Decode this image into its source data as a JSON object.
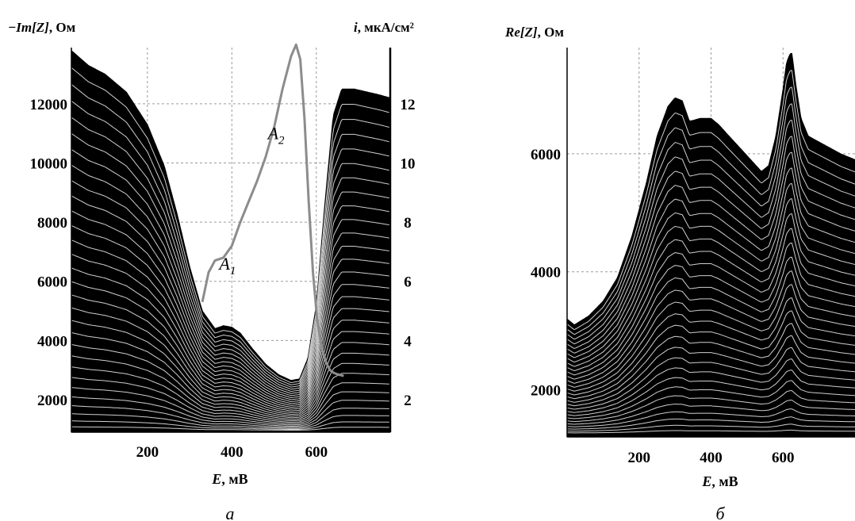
{
  "panels": [
    {
      "id": "a",
      "caption": "а",
      "y_label_bold_italic": "−Im[Z]",
      "y_label_rest": ", Ом",
      "y2_label_bold_italic": "i",
      "y2_label_rest": ", мкА/см²",
      "x_label_bold_italic": "E",
      "x_label_rest": ", мВ",
      "annotations": [
        {
          "base": "A",
          "sub": "1",
          "x": 370,
          "y": 6400
        },
        {
          "base": "A",
          "sub": "2",
          "x": 485,
          "y": 10800
        }
      ]
    },
    {
      "id": "b",
      "caption": "б",
      "y_label_bold_italic": "Re[Z]",
      "y_label_rest": ", Ом",
      "x_label_bold_italic": "E",
      "x_label_rest": ", мВ"
    }
  ],
  "chart_data": [
    {
      "type": "area",
      "panel": "a",
      "xlim": [
        20,
        775
      ],
      "ylim": [
        900,
        13900
      ],
      "y2lim": [
        0.9,
        13.9
      ],
      "x_ticks": [
        200,
        400,
        600
      ],
      "y_ticks": [
        2000,
        4000,
        6000,
        8000,
        10000,
        12000
      ],
      "y2_ticks": [
        2,
        4,
        6,
        8,
        10,
        12
      ],
      "grid": true,
      "envelope": {
        "x": [
          20,
          60,
          100,
          150,
          200,
          240,
          270,
          300,
          330,
          360,
          380,
          400,
          420,
          450,
          480,
          510,
          540,
          560,
          580,
          600,
          620,
          640,
          660,
          690,
          720,
          750,
          775
        ],
        "y": [
          13800,
          13300,
          13000,
          12400,
          11300,
          9900,
          8300,
          6500,
          5000,
          4400,
          4500,
          4450,
          4250,
          3700,
          3200,
          2850,
          2650,
          2700,
          3400,
          5200,
          8600,
          11600,
          12500,
          12500,
          12400,
          12300,
          12200
        ]
      },
      "families": {
        "count": 30,
        "min": 950,
        "rule": "equally spaced between the envelope and the minimum"
      },
      "current_curve": {
        "name": "i",
        "x": [
          330,
          345,
          360,
          380,
          400,
          420,
          440,
          460,
          480,
          500,
          520,
          540,
          552,
          562,
          572,
          582,
          592,
          602,
          612,
          622,
          632,
          642,
          652,
          665
        ],
        "y": [
          5.3,
          6.3,
          6.7,
          6.8,
          7.2,
          8.0,
          8.7,
          9.4,
          10.2,
          11.2,
          12.5,
          13.6,
          14.0,
          13.5,
          11.5,
          8.7,
          6.3,
          4.7,
          3.8,
          3.3,
          3.0,
          2.9,
          2.85,
          2.8
        ]
      }
    },
    {
      "type": "area",
      "panel": "b",
      "xlim": [
        0,
        800
      ],
      "ylim": [
        1200,
        7800
      ],
      "x_ticks": [
        200,
        400,
        600
      ],
      "y_ticks": [
        2000,
        4000,
        6000
      ],
      "grid": true,
      "envelope": {
        "x": [
          0,
          20,
          60,
          100,
          140,
          180,
          220,
          250,
          280,
          300,
          320,
          340,
          370,
          400,
          420,
          450,
          480,
          510,
          540,
          560,
          580,
          600,
          610,
          620,
          625,
          635,
          650,
          670,
          700,
          730,
          760,
          800
        ],
        "y": [
          3200,
          3100,
          3250,
          3500,
          3900,
          4600,
          5500,
          6300,
          6800,
          6950,
          6900,
          6550,
          6600,
          6600,
          6500,
          6300,
          6100,
          5900,
          5700,
          5800,
          6300,
          7100,
          7550,
          7700,
          7700,
          7200,
          6600,
          6300,
          6200,
          6100,
          6000,
          5900
        ]
      },
      "families": {
        "count": 30,
        "min": 1250,
        "rule": "equally spaced between the envelope and the minimum"
      }
    }
  ]
}
